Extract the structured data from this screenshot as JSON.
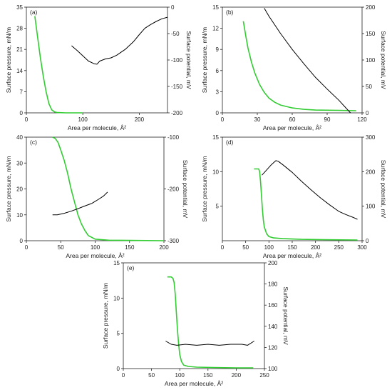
{
  "chart_data": [
    {
      "type": "line",
      "panel_label": "(a)",
      "xlabel": "Area per molecule, Å²",
      "ylabel_left": "Surface pressure, mN/m",
      "ylabel_right": "Surface potential, mV",
      "xlim": [
        0,
        250
      ],
      "ylim_left": [
        0,
        35
      ],
      "ylim_right": [
        -200,
        0
      ],
      "x_ticks": [
        "0",
        "100",
        "200"
      ],
      "y_ticks_left": [
        "0",
        "7",
        "14",
        "21",
        "28",
        "35"
      ],
      "y_ticks_right": [
        "-200",
        "-150",
        "-100",
        "-50",
        "0"
      ],
      "series": [
        {
          "axis": "left",
          "color": "#33cc33",
          "x": [
            15,
            20,
            25,
            30,
            35,
            40,
            45,
            50,
            55,
            70,
            100
          ],
          "y": [
            32,
            25,
            18,
            12,
            7,
            3,
            1,
            0.3,
            0.1,
            0,
            0
          ]
        },
        {
          "axis": "right",
          "color": "#000000",
          "x": [
            80,
            90,
            100,
            110,
            120,
            125,
            130,
            140,
            150,
            160,
            175,
            190,
            200,
            210,
            220,
            230,
            240,
            250
          ],
          "y": [
            -73,
            -82,
            -92,
            -102,
            -107,
            -108,
            -102,
            -98,
            -96,
            -91,
            -80,
            -65,
            -52,
            -40,
            -33,
            -27,
            -22,
            -19
          ]
        }
      ]
    },
    {
      "type": "line",
      "panel_label": "(b)",
      "xlabel": "Area per molecule, Å²",
      "ylabel_left": "Surface pressure, mN/m",
      "ylabel_right": "Surface potential, mV",
      "xlim": [
        0,
        120
      ],
      "ylim_left": [
        0,
        15
      ],
      "ylim_right": [
        0,
        200
      ],
      "x_ticks": [
        "0",
        "30",
        "60",
        "90",
        "120"
      ],
      "y_ticks_left": [
        "0",
        "3",
        "6",
        "9",
        "12",
        "15"
      ],
      "y_ticks_right": [
        "0",
        "50",
        "100",
        "150",
        "200"
      ],
      "series": [
        {
          "axis": "left",
          "color": "#33cc33",
          "x": [
            18,
            20,
            22,
            25,
            28,
            32,
            36,
            40,
            45,
            50,
            60,
            70,
            80,
            100,
            115
          ],
          "y": [
            13,
            11,
            9.2,
            7.2,
            5.6,
            4,
            2.9,
            2.1,
            1.5,
            1.1,
            0.7,
            0.5,
            0.4,
            0.35,
            0.3
          ]
        },
        {
          "axis": "right",
          "color": "#000000",
          "x": [
            36,
            40,
            50,
            60,
            70,
            80,
            90,
            100,
            105,
            110
          ],
          "y": [
            198,
            183,
            150,
            120,
            93,
            67,
            45,
            24,
            12,
            0
          ]
        }
      ]
    },
    {
      "type": "line",
      "panel_label": "(c)",
      "xlabel": "Area per molecule, Å²",
      "ylabel_left": "Surface pressure, mN/m",
      "ylabel_right": "Surface potential, mV",
      "xlim": [
        0,
        200
      ],
      "ylim_left": [
        0,
        40
      ],
      "ylim_right": [
        -300,
        -100
      ],
      "x_ticks": [
        "0",
        "50",
        "100",
        "150",
        "200"
      ],
      "y_ticks_left": [
        "0",
        "10",
        "20",
        "30",
        "40"
      ],
      "y_ticks_right": [
        "-300",
        "-200",
        "-100"
      ],
      "series": [
        {
          "axis": "left",
          "color": "#33cc33",
          "x": [
            38,
            42,
            46,
            50,
            55,
            60,
            65,
            70,
            75,
            80,
            85,
            90,
            100,
            120,
            150,
            200
          ],
          "y": [
            40,
            39.5,
            38,
            35,
            31,
            26,
            20,
            15,
            10,
            6.5,
            4,
            2,
            0.6,
            0.2,
            0.1,
            0
          ]
        },
        {
          "axis": "right",
          "color": "#000000",
          "x": [
            38,
            45,
            55,
            65,
            75,
            85,
            95,
            100,
            105,
            112,
            118
          ],
          "y": [
            -250,
            -250,
            -247,
            -243,
            -238,
            -233,
            -228,
            -224,
            -220,
            -214,
            -206
          ]
        }
      ]
    },
    {
      "type": "line",
      "panel_label": "(d)",
      "xlabel": "Area per molecule, Å²",
      "ylabel_left": "Surface pressure, mN/m",
      "ylabel_right": "Surface potential, mV",
      "xlim": [
        0,
        300
      ],
      "ylim_left": [
        0,
        15
      ],
      "ylim_right": [
        0,
        300
      ],
      "x_ticks": [
        "0",
        "50",
        "100",
        "150",
        "200",
        "250",
        "300"
      ],
      "y_ticks_left": [
        "5",
        "10",
        "15"
      ],
      "y_ticks_right": [
        "0",
        "100",
        "200",
        "300"
      ],
      "series": [
        {
          "axis": "left",
          "color": "#33cc33",
          "x": [
            68,
            74,
            78,
            80,
            82,
            84,
            86,
            88,
            90,
            95,
            100,
            110,
            130,
            170,
            220,
            290
          ],
          "y": [
            10.4,
            10.4,
            10.4,
            10,
            8.5,
            6.5,
            4.5,
            3,
            2,
            1,
            0.6,
            0.4,
            0.3,
            0.2,
            0.15,
            0.1
          ]
        },
        {
          "axis": "right",
          "color": "#000000",
          "x": [
            85,
            95,
            105,
            115,
            120,
            130,
            150,
            170,
            190,
            210,
            230,
            250,
            265,
            280,
            290
          ],
          "y": [
            190,
            205,
            220,
            232,
            230,
            220,
            198,
            172,
            148,
            125,
            104,
            85,
            76,
            68,
            62
          ]
        }
      ]
    },
    {
      "type": "line",
      "panel_label": "(e)",
      "xlabel": "Area per molecule, Å²",
      "ylabel_left": "Surface pressure, mN/m",
      "ylabel_right": "Surface potential, mV",
      "xlim": [
        0,
        250
      ],
      "ylim_left": [
        0,
        15
      ],
      "ylim_right": [
        100,
        200
      ],
      "x_ticks": [
        "0",
        "50",
        "100",
        "150",
        "200",
        "250"
      ],
      "y_ticks_left": [
        "0",
        "5",
        "10",
        "15"
      ],
      "y_ticks_right": [
        "100",
        "120",
        "140",
        "160",
        "180",
        "200"
      ],
      "series": [
        {
          "axis": "left",
          "color": "#33cc33",
          "x": [
            78,
            85,
            88,
            90,
            92,
            94,
            96,
            98,
            100,
            103,
            107,
            115,
            130,
            160,
            200,
            230
          ],
          "y": [
            13,
            13,
            12.8,
            12.2,
            10.5,
            8,
            5.5,
            3.5,
            2,
            1,
            0.5,
            0.3,
            0.2,
            0.15,
            0.1,
            0.1
          ]
        },
        {
          "axis": "right",
          "color": "#000000",
          "x": [
            75,
            85,
            95,
            110,
            130,
            150,
            170,
            190,
            210,
            220,
            232
          ],
          "y": [
            126,
            123,
            122,
            123,
            122,
            123,
            122,
            123,
            123,
            122,
            126
          ]
        }
      ]
    }
  ]
}
